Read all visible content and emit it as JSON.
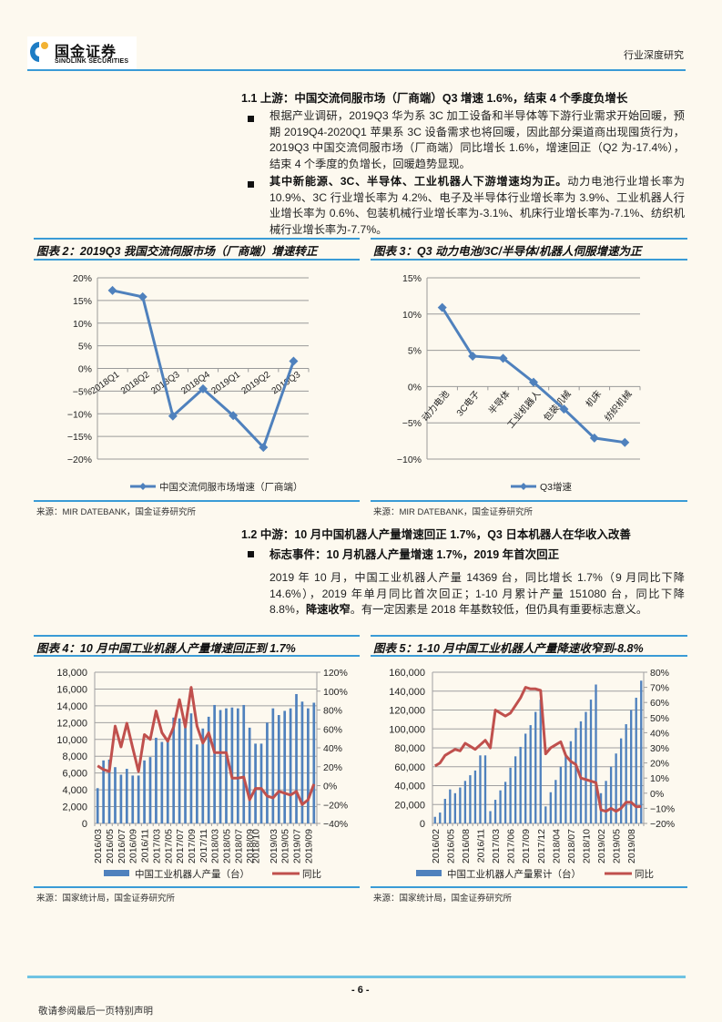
{
  "header": {
    "logo_cn": "国金证券",
    "logo_en": "SINOLINK SECURITIES",
    "report_type": "行业深度研究"
  },
  "section_1_1": {
    "title": "1.1 上游：中国交流伺服市场（厂商端）Q3 增速 1.6%，结束 4 个季度负增长",
    "bullets": [
      {
        "bold": "",
        "text": "根据产业调研，2019Q3 华为系 3C 加工设备和半导体等下游行业需求开始回暖，预期 2019Q4-2020Q1 苹果系 3C 设备需求也将回暖，因此部分渠道商出现囤货行为，2019Q3 中国交流伺服市场（厂商端）同比增长 1.6%，增速回正（Q2 为-17.4%），结束 4 个季度的负增长，回暖趋势显现。"
      },
      {
        "bold": "其中新能源、3C、半导体、工业机器人下游增速均为正。",
        "text": "动力电池行业增长率为 10.9%、3C 行业增长率为 4.2%、电子及半导体行业增长率为 3.9%、工业机器人行业增长率为 0.6%、包装机械行业增长率为-3.1%、机床行业增长率为-7.1%、纺织机械行业增长率为-7.7%。"
      }
    ]
  },
  "figure_2": {
    "title": "图表 2：2019Q3 我国交流伺服市场（厂商端）增速转正",
    "legend": "中国交流伺服市场增速（厂商端）",
    "source": "来源：MIR DATEBANK，国金证券研究所"
  },
  "figure_3": {
    "title": "图表 3：Q3 动力电池/3C/半导体/机器人伺服增速为正",
    "legend": "Q3增速",
    "source": "来源：MIR DATEBANK，国金证券研究所"
  },
  "section_1_2": {
    "title": "1.2 中游：10 月中国机器人产量增速回正 1.7%，Q3 日本机器人在华收入改善",
    "bullet_title": "标志事件：10 月机器人产量增速 1.7%，2019 年首次回正",
    "para_1": "2019 年 10 月，中国工业机器人产量 14369 台，同比增长 1.7%（9 月同比下降 14.6%），2019 年单月同比首次回正；1-10 月累计产量 151080 台，同比下降 8.8%，",
    "para_bold": "降速收窄",
    "para_2": "。有一定因素是 2018 年基数较低，但仍具有重要标志意义。"
  },
  "figure_4": {
    "title": "图表 4：10 月中国工业机器人产量增速回正到 1.7%",
    "legend_bar": "中国工业机器人产量（台）",
    "legend_line": "同比",
    "source": "来源：国家统计局，国金证券研究所"
  },
  "figure_5": {
    "title": "图表 5：1-10 月中国工业机器人产量降速收窄到-8.8%",
    "legend_bar": "中国工业机器人产量累计（台）",
    "legend_line": "同比",
    "source": "来源：国家统计局，国金证券研究所"
  },
  "footer": {
    "page": "- 6 -",
    "note": "敬请参阅最后一页特别声明"
  },
  "colors": {
    "accent_blue": "#3a9bd6",
    "series_blue": "#4f81bd",
    "series_red": "#c0504d",
    "background": "#fdf9ef"
  },
  "chart_data": [
    {
      "id": "figure_2",
      "type": "line",
      "title": "图表 2：2019Q3 我国交流伺服市场（厂商端）增速转正",
      "categories": [
        "2018Q1",
        "2018Q2",
        "2018Q3",
        "2018Q4",
        "2019Q1",
        "2019Q2",
        "2019Q3"
      ],
      "series": [
        {
          "name": "中国交流伺服市场增速（厂商端）",
          "values": [
            17.2,
            15.8,
            -10.5,
            -4.5,
            -10.4,
            -17.4,
            1.6
          ],
          "color": "#4f81bd"
        }
      ],
      "ylim": [
        -20,
        20
      ],
      "yticks": [
        "20%",
        "15%",
        "10%",
        "5%",
        "0%",
        "-5%",
        "-10%",
        "-15%",
        "-20%"
      ],
      "grid": true,
      "legend_position": "bottom"
    },
    {
      "id": "figure_3",
      "type": "line",
      "title": "图表 3：Q3 动力电池/3C/半导体/机器人伺服增速为正",
      "categories": [
        "动力电池",
        "3C电子",
        "半导体",
        "工业机器人",
        "包装机械",
        "机床",
        "纺织机械"
      ],
      "series": [
        {
          "name": "Q3增速",
          "values": [
            10.9,
            4.2,
            3.9,
            0.6,
            -3.1,
            -7.1,
            -7.7
          ],
          "color": "#4f81bd"
        }
      ],
      "ylim": [
        -10,
        15
      ],
      "yticks": [
        "15%",
        "10%",
        "5%",
        "0%",
        "-5%",
        "-10%"
      ],
      "grid": true,
      "legend_position": "bottom"
    },
    {
      "id": "figure_4",
      "type": "bar",
      "title": "图表 4：10 月中国工业机器人产量增速回正到 1.7%",
      "x": [
        "2016/03",
        "2016/04",
        "2016/05",
        "2016/06",
        "2016/07",
        "2016/08",
        "2016/09",
        "2016/10",
        "2016/11",
        "2016/12",
        "2017/03",
        "2017/04",
        "2017/05",
        "2017/06",
        "2017/07",
        "2017/08",
        "2017/09",
        "2017/10",
        "2017/11",
        "2017/12",
        "2018/03",
        "2018/04",
        "2018/05",
        "2018/06",
        "2018/07",
        "2018/08",
        "2018/09",
        "2018/10",
        "2018/11",
        "2018/12",
        "2019/03",
        "2019/04",
        "2019/05",
        "2019/06",
        "2019/07",
        "2019/08",
        "2019/09",
        "2019/10"
      ],
      "xtick_labels": [
        "2016/03",
        "2016/05",
        "2016/07",
        "2016/09",
        "2016/11",
        "2017/03",
        "2017/05",
        "2017/07",
        "2017/09",
        "2017/11",
        "2018/03",
        "2018/05",
        "2018/07",
        "2018/09",
        "2018/10",
        "2019/03",
        "2019/05",
        "2019/07",
        "2019/09"
      ],
      "series": [
        {
          "name": "中国工业机器人产量（台）",
          "type": "bar",
          "axis": "left",
          "color": "#4f81bd",
          "values": [
            4200,
            7500,
            7600,
            6700,
            5800,
            6500,
            5700,
            5700,
            7500,
            7900,
            10200,
            9700,
            10000,
            12600,
            12500,
            11400,
            13100,
            9400,
            11300,
            12700,
            14100,
            13500,
            13700,
            13800,
            13700,
            14100,
            11400,
            9500,
            9500,
            12000,
            13700,
            12900,
            13400,
            13700,
            15400,
            14500,
            13700,
            14369
          ]
        },
        {
          "name": "同比",
          "type": "line",
          "axis": "right",
          "color": "#c0504d",
          "values": [
            21,
            17,
            15,
            63,
            41,
            66,
            40,
            15,
            54,
            49,
            79,
            56,
            47,
            62,
            91,
            62,
            104,
            63,
            45,
            56,
            35,
            35,
            35,
            8,
            8,
            9,
            -15,
            -3,
            -3,
            -11,
            -13,
            -6,
            -8,
            -10,
            -6,
            -20,
            -15,
            1.7
          ]
        }
      ],
      "ylim_left": [
        0,
        18000
      ],
      "yticks_left": [
        "18,000",
        "16,000",
        "14,000",
        "12,000",
        "10,000",
        "8,000",
        "6,000",
        "4,000",
        "2,000",
        "0"
      ],
      "ylim_right": [
        -40,
        120
      ],
      "yticks_right": [
        "120%",
        "100%",
        "80%",
        "60%",
        "40%",
        "20%",
        "0%",
        "-20%",
        "-40%"
      ],
      "grid": true,
      "legend_position": "bottom"
    },
    {
      "id": "figure_5",
      "type": "bar",
      "title": "图表 5：1-10 月中国工业机器人产量降速收窄到-8.8%",
      "x": [
        "2016/02",
        "2016/03",
        "2016/04",
        "2016/05",
        "2016/06",
        "2016/07",
        "2016/08",
        "2016/09",
        "2016/10",
        "2016/11",
        "2016/12",
        "2017/02",
        "2017/03",
        "2017/04",
        "2017/05",
        "2017/06",
        "2017/07",
        "2017/08",
        "2017/09",
        "2017/10",
        "2017/11",
        "2017/12",
        "2018/02",
        "2018/03",
        "2018/04",
        "2018/05",
        "2018/06",
        "2018/07",
        "2018/08",
        "2018/09",
        "2018/10",
        "2018/11",
        "2018/12",
        "2019/02",
        "2019/03",
        "2019/04",
        "2019/05",
        "2019/06",
        "2019/07",
        "2019/08",
        "2019/09",
        "2019/10"
      ],
      "xtick_labels": [
        "2016/02",
        "2016/05",
        "2016/08",
        "2016/11",
        "2017/03",
        "2017/06",
        "2017/09",
        "2017/12",
        "2018/04",
        "2018/07",
        "2018/10",
        "2019/02",
        "2019/05",
        "2019/08"
      ],
      "series": [
        {
          "name": "中国工业机器人产量累计（台）",
          "type": "bar",
          "axis": "left",
          "color": "#4f81bd",
          "values": [
            7000,
            11500,
            26000,
            36000,
            32000,
            38000,
            45000,
            51000,
            56000,
            72000,
            72000,
            13000,
            25000,
            35000,
            44000,
            59000,
            71000,
            81000,
            95000,
            104000,
            118000,
            131000,
            18000,
            33000,
            46000,
            60000,
            73000,
            87000,
            101000,
            108000,
            118000,
            131000,
            147000,
            32000,
            45000,
            60000,
            74000,
            90000,
            105000,
            120000,
            133000,
            151080
          ]
        },
        {
          "name": "同比",
          "type": "line",
          "axis": "right",
          "color": "#c0504d",
          "values": [
            18,
            20,
            25,
            27,
            29,
            28,
            33,
            31,
            29,
            32,
            35,
            30,
            55,
            53,
            51,
            53,
            58,
            63,
            70,
            69,
            69,
            68,
            26,
            30,
            32,
            34,
            25,
            21,
            19,
            10,
            9,
            8,
            7,
            -11,
            -12,
            -10,
            -12,
            -10,
            -6,
            -6,
            -9,
            -8.8
          ]
        }
      ],
      "ylim_left": [
        0,
        160000
      ],
      "yticks_left": [
        "160,000",
        "140,000",
        "120,000",
        "100,000",
        "80,000",
        "60,000",
        "40,000",
        "20,000",
        "0"
      ],
      "ylim_right": [
        -20,
        80
      ],
      "yticks_right": [
        "80%",
        "70%",
        "60%",
        "50%",
        "40%",
        "30%",
        "20%",
        "10%",
        "0%",
        "-10%",
        "-20%"
      ],
      "grid": true,
      "legend_position": "bottom"
    }
  ]
}
